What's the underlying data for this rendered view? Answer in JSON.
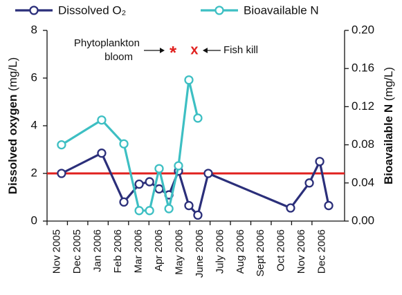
{
  "chart_data": {
    "type": "line",
    "ylabel": "Dissolved oxygen",
    "yunit": "(mg/L)",
    "y2label": "Bioavailable N",
    "y2unit": "(mg/L)",
    "categories": [
      "Nov 2005",
      "Dec 2005",
      "Jan 2006",
      "Feb 2006",
      "Mar 2006",
      "Apr 2006",
      "May 2006",
      "June 2006",
      "July 2006",
      "Aug 2006",
      "Sept 2006",
      "Oct 2006",
      "Nov 2006",
      "Dec 2006"
    ],
    "xlim": [
      0,
      14.6
    ],
    "ylim": [
      0,
      8
    ],
    "yticks": [
      0,
      2,
      4,
      6,
      8
    ],
    "y2lim": [
      0,
      0.2
    ],
    "y2ticks": [
      {
        "value": 0,
        "label": "0.00"
      },
      0.04,
      0.08,
      0.12,
      0.16,
      {
        "value": 0.2,
        "label": "0.20"
      }
    ],
    "ref_line": {
      "value": 2,
      "color": "#e0201e"
    },
    "series": [
      {
        "name": "Dissolved O₂",
        "color": "#2b2f7a",
        "x": [
          0.71,
          2.68,
          3.77,
          4.52,
          5.03,
          5.5,
          5.98,
          6.45,
          6.96,
          7.4,
          7.91,
          11.95,
          12.87,
          13.38,
          13.82
        ],
        "values": [
          2.0,
          2.85,
          0.8,
          1.55,
          1.65,
          1.35,
          1.1,
          2.1,
          0.65,
          0.25,
          2.0,
          0.55,
          1.6,
          2.5,
          0.65
        ]
      },
      {
        "name": "Bioavailable N",
        "color": "#3dbfc3",
        "axis": "y2",
        "x": [
          0.71,
          2.68,
          3.77,
          4.52,
          5.03,
          5.5,
          5.98,
          6.45,
          6.96,
          7.4
        ],
        "values": [
          0.08,
          0.106,
          0.081,
          0.011,
          0.011,
          0.055,
          0.013,
          0.058,
          0.148,
          0.108
        ]
      }
    ],
    "events": [
      {
        "lines": [
          "Phytoplankton",
          "bloom"
        ],
        "symbol": "*",
        "x": 6.18,
        "y": 7.16,
        "color": "#e0201e"
      },
      {
        "lines": [
          "Fish kill"
        ],
        "symbol": "x",
        "x": 7.23,
        "y": 7.16,
        "color": "#e0201e"
      }
    ]
  }
}
